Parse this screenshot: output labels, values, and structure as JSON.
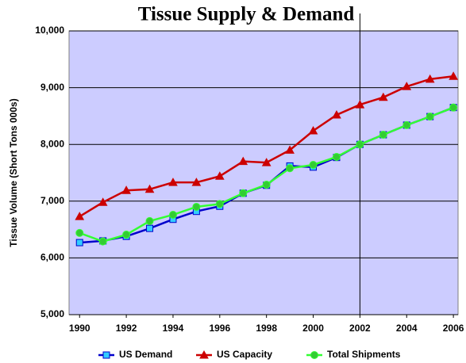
{
  "chart_data": {
    "type": "line",
    "title": "Tissue Supply & Demand",
    "y_label": "Tissue Volume (Short Tons 000s)",
    "x": [
      1990,
      1991,
      1992,
      1993,
      1994,
      1995,
      1996,
      1997,
      1998,
      1999,
      2000,
      2001,
      2002,
      2003,
      2004,
      2005,
      2006
    ],
    "series": [
      {
        "name": "US Demand",
        "color": "#0000cc",
        "marker": "square",
        "marker_color": "#33ccff",
        "values": [
          6270,
          6300,
          6380,
          6520,
          6680,
          6820,
          6910,
          7140,
          7280,
          7620,
          7600,
          7770,
          8000,
          8170,
          8340,
          8490,
          8650
        ]
      },
      {
        "name": "US Capacity",
        "color": "#cc0000",
        "marker": "triangle",
        "marker_color": "#cc0000",
        "values": [
          6730,
          6980,
          7190,
          7210,
          7330,
          7330,
          7440,
          7700,
          7680,
          7900,
          8240,
          8520,
          8700,
          8830,
          9020,
          9150,
          9200
        ]
      },
      {
        "name": "Total Shipments",
        "color": "#33ff33",
        "marker": "circle",
        "marker_color": "#33cc33",
        "values": [
          6440,
          6290,
          6410,
          6650,
          6760,
          6900,
          6950,
          7140,
          7290,
          7580,
          7640,
          7780,
          8000,
          8170,
          8340,
          8490,
          8650
        ]
      }
    ],
    "xlim": [
      1989.55,
      2006.2
    ],
    "xticks": [
      1990,
      1992,
      1994,
      1996,
      1998,
      2000,
      2002,
      2004,
      2006
    ],
    "ylim": [
      5000,
      10000
    ],
    "yticks": [
      {
        "value": 5000,
        "label": "5,000"
      },
      {
        "value": 6000,
        "label": "6,000"
      },
      {
        "value": 7000,
        "label": "7,000"
      },
      {
        "value": 8000,
        "label": "8,000"
      },
      {
        "value": 9000,
        "label": "9,000"
      },
      {
        "value": 10000,
        "label": "10,000"
      }
    ],
    "vline_x": 2002,
    "grid": true,
    "legend": "bottom",
    "background": "#ccccff"
  }
}
